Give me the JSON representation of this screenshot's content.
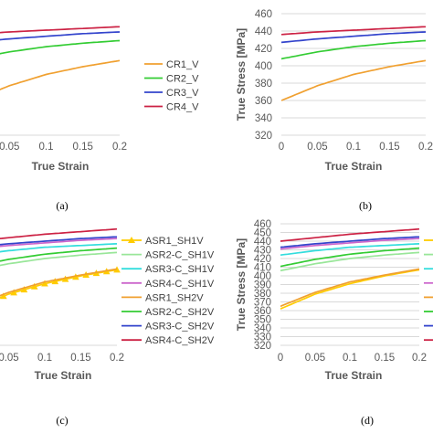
{
  "chart_data": [
    {
      "panel": "(a)",
      "type": "line",
      "xlabel": "True Strain",
      "ylabel": "",
      "xlim": [
        0,
        0.2
      ],
      "ylim": [
        320,
        460
      ],
      "xticks": [
        "0.05",
        "0.1",
        "0.15",
        "0.2"
      ],
      "yticks": [],
      "grid": false,
      "legend_position": "right",
      "series": [
        {
          "name": "CR1_V",
          "color": "#F0A030",
          "x": [
            0,
            0.05,
            0.1,
            0.15,
            0.2
          ],
          "y": [
            360,
            377,
            390,
            399,
            406
          ]
        },
        {
          "name": "CR2_V",
          "color": "#33CC33",
          "x": [
            0,
            0.05,
            0.1,
            0.15,
            0.2
          ],
          "y": [
            408,
            416,
            422,
            426,
            429
          ]
        },
        {
          "name": "CR3_V",
          "color": "#3344CC",
          "x": [
            0,
            0.05,
            0.1,
            0.15,
            0.2
          ],
          "y": [
            427,
            431,
            434,
            437,
            439
          ]
        },
        {
          "name": "CR4_V",
          "color": "#CC2244",
          "x": [
            0,
            0.05,
            0.1,
            0.15,
            0.2
          ],
          "y": [
            436,
            439,
            441,
            443,
            445
          ]
        }
      ]
    },
    {
      "panel": "(b)",
      "type": "line",
      "xlabel": "True Strain",
      "ylabel": "True Stress [MPa]",
      "xlim": [
        0,
        0.2
      ],
      "ylim": [
        320,
        460
      ],
      "xticks": [
        "0",
        "0.05",
        "0.1",
        "0.15",
        "0.2"
      ],
      "yticks": [
        "320",
        "340",
        "360",
        "380",
        "400",
        "420",
        "440",
        "460"
      ],
      "grid": true,
      "legend_position": "none",
      "series": [
        {
          "name": "",
          "color": "#F0A030",
          "x": [
            0,
            0.05,
            0.1,
            0.15,
            0.2
          ],
          "y": [
            360,
            377,
            390,
            399,
            406
          ]
        },
        {
          "name": "",
          "color": "#33CC33",
          "x": [
            0,
            0.05,
            0.1,
            0.15,
            0.2
          ],
          "y": [
            408,
            416,
            422,
            426,
            429
          ]
        },
        {
          "name": "",
          "color": "#3344CC",
          "x": [
            0,
            0.05,
            0.1,
            0.15,
            0.2
          ],
          "y": [
            427,
            431,
            434,
            437,
            439
          ]
        },
        {
          "name": "",
          "color": "#CC2244",
          "x": [
            0,
            0.05,
            0.1,
            0.15,
            0.2
          ],
          "y": [
            436,
            439,
            441,
            443,
            445
          ]
        }
      ]
    },
    {
      "panel": "(c)",
      "type": "line",
      "xlabel": "True Strain",
      "ylabel": "",
      "xlim": [
        0,
        0.2
      ],
      "ylim": [
        320,
        460
      ],
      "xticks": [
        "0.05",
        "0.1",
        "0.15",
        "0.2"
      ],
      "yticks": [],
      "grid": false,
      "legend_position": "right",
      "series": [
        {
          "name": "ASR1_SH1V",
          "color": "#FFCC00",
          "marker": "triangle",
          "x": [
            0,
            0.05,
            0.1,
            0.15,
            0.2
          ],
          "y": [
            362,
            379,
            391,
            400,
            407
          ]
        },
        {
          "name": "ASR2-C_SH1V",
          "color": "#99E699",
          "x": [
            0,
            0.05,
            0.1,
            0.15,
            0.2
          ],
          "y": [
            406,
            414,
            420,
            424,
            427
          ]
        },
        {
          "name": "ASR3-C_SH1V",
          "color": "#33DDDD",
          "x": [
            0,
            0.05,
            0.1,
            0.15,
            0.2
          ],
          "y": [
            424,
            429,
            433,
            435,
            437
          ]
        },
        {
          "name": "ASR4-C_SH1V",
          "color": "#CC66CC",
          "x": [
            0,
            0.05,
            0.1,
            0.15,
            0.2
          ],
          "y": [
            431,
            435,
            438,
            441,
            443
          ]
        },
        {
          "name": "ASR1_SH2V",
          "color": "#F0A030",
          "x": [
            0,
            0.05,
            0.1,
            0.15,
            0.2
          ],
          "y": [
            365,
            381,
            393,
            401,
            408
          ]
        },
        {
          "name": "ASR2-C_SH2V",
          "color": "#33CC33",
          "x": [
            0,
            0.05,
            0.1,
            0.15,
            0.2
          ],
          "y": [
            411,
            419,
            425,
            429,
            432
          ]
        },
        {
          "name": "ASR3-C_SH2V",
          "color": "#3344CC",
          "x": [
            0,
            0.05,
            0.1,
            0.15,
            0.2
          ],
          "y": [
            433,
            437,
            440,
            443,
            445
          ]
        },
        {
          "name": "ASR4-C_SH2V",
          "color": "#CC2244",
          "x": [
            0,
            0.05,
            0.1,
            0.15,
            0.2
          ],
          "y": [
            440,
            444,
            448,
            451,
            454
          ]
        }
      ]
    },
    {
      "panel": "(d)",
      "type": "line",
      "xlabel": "True Strain",
      "ylabel": "True Stress [MPa]",
      "xlim": [
        0,
        0.2
      ],
      "ylim": [
        320,
        460
      ],
      "xticks": [
        "0",
        "0.05",
        "0.1",
        "0.15",
        "0.2"
      ],
      "yticks": [
        "320",
        "330",
        "340",
        "350",
        "360",
        "370",
        "380",
        "390",
        "400",
        "410",
        "420",
        "430",
        "440",
        "450",
        "460"
      ],
      "grid": true,
      "legend_position": "right",
      "series": [
        {
          "name": "",
          "color": "#FFCC00",
          "x": [
            0,
            0.05,
            0.1,
            0.15,
            0.2
          ],
          "y": [
            362,
            379,
            391,
            400,
            407
          ]
        },
        {
          "name": "",
          "color": "#99E699",
          "x": [
            0,
            0.05,
            0.1,
            0.15,
            0.2
          ],
          "y": [
            406,
            414,
            420,
            424,
            427
          ]
        },
        {
          "name": "",
          "color": "#33DDDD",
          "x": [
            0,
            0.05,
            0.1,
            0.15,
            0.2
          ],
          "y": [
            424,
            429,
            433,
            435,
            437
          ]
        },
        {
          "name": "",
          "color": "#CC66CC",
          "x": [
            0,
            0.05,
            0.1,
            0.15,
            0.2
          ],
          "y": [
            431,
            435,
            438,
            441,
            443
          ]
        },
        {
          "name": "",
          "color": "#F0A030",
          "x": [
            0,
            0.05,
            0.1,
            0.15,
            0.2
          ],
          "y": [
            365,
            381,
            393,
            401,
            408
          ]
        },
        {
          "name": "",
          "color": "#33CC33",
          "x": [
            0,
            0.05,
            0.1,
            0.15,
            0.2
          ],
          "y": [
            411,
            419,
            425,
            429,
            432
          ]
        },
        {
          "name": "",
          "color": "#3344CC",
          "x": [
            0,
            0.05,
            0.1,
            0.15,
            0.2
          ],
          "y": [
            433,
            437,
            440,
            443,
            445
          ]
        },
        {
          "name": "",
          "color": "#CC2244",
          "x": [
            0,
            0.05,
            0.1,
            0.15,
            0.2
          ],
          "y": [
            440,
            444,
            448,
            451,
            454
          ]
        }
      ]
    }
  ]
}
